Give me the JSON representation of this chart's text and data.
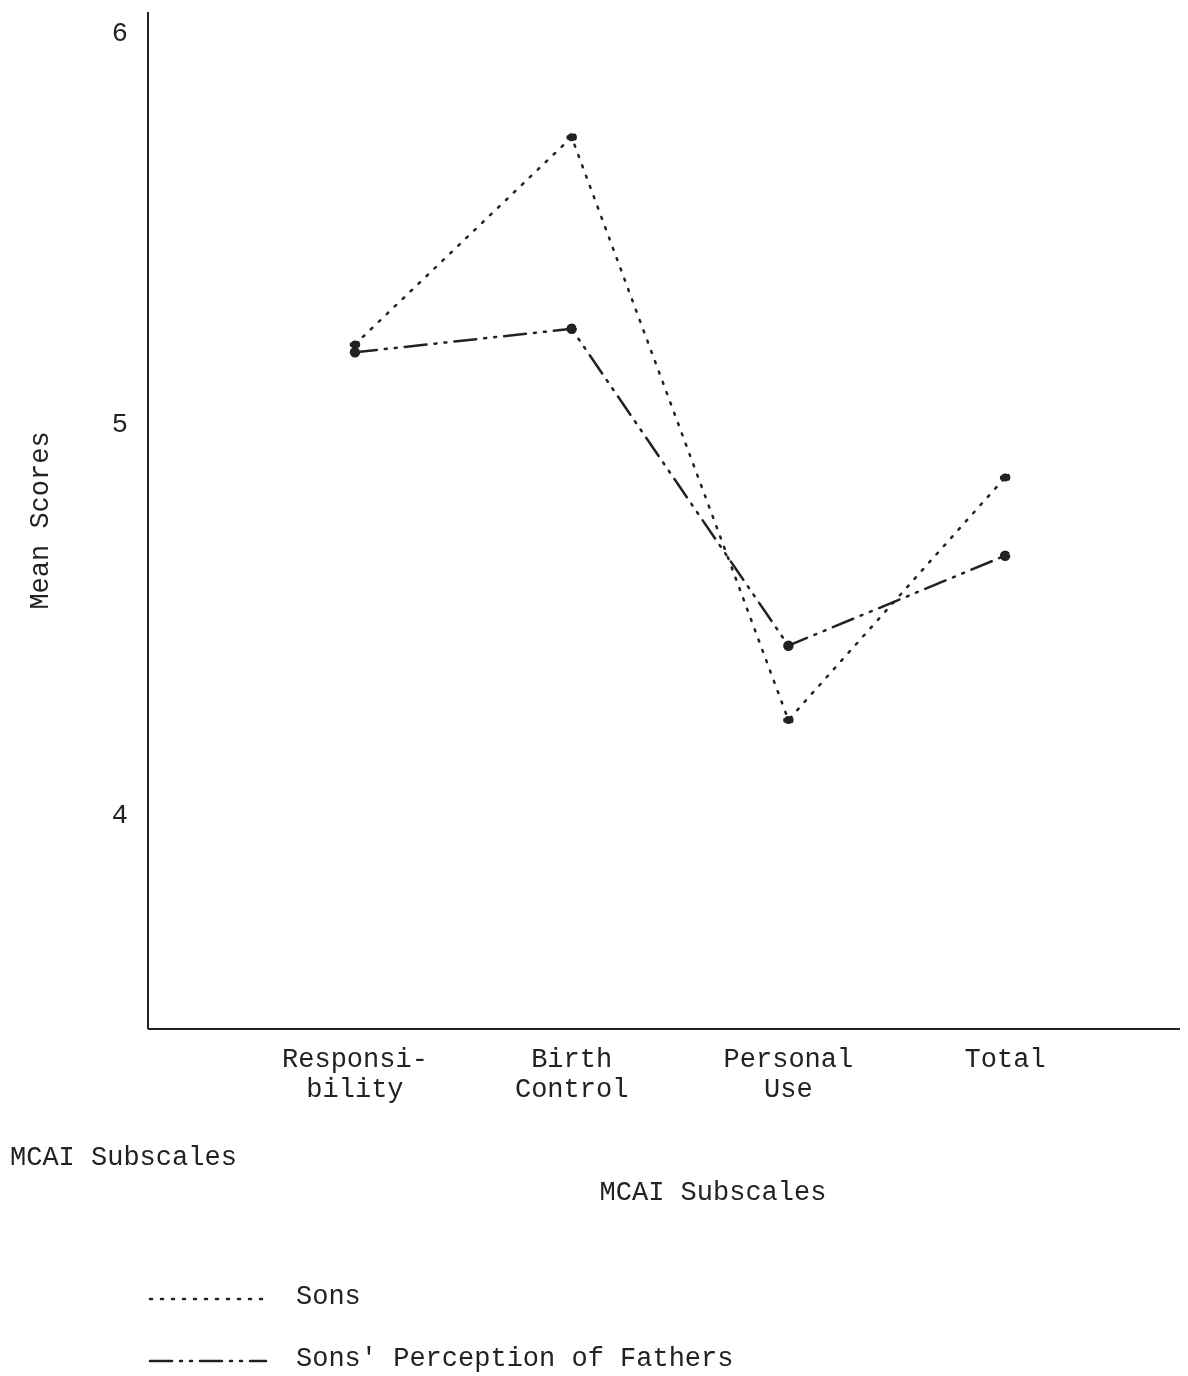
{
  "chart_data": {
    "type": "line",
    "xlabel": "MCAI Subscales",
    "ylabel": "Mean Scores",
    "annotations": [
      "MCAI Subscales"
    ],
    "categories": [
      "Responsi-\nbility",
      "Birth\nControl",
      "Personal\nUse",
      "Total"
    ],
    "series": [
      {
        "name": "Sons",
        "color": "#222222",
        "line_style": "dotted",
        "values": [
          5.2,
          5.73,
          4.24,
          4.86
        ]
      },
      {
        "name": "Sons' Perception of Fathers",
        "color": "#222222",
        "line_style": "dashed",
        "values": [
          5.18,
          5.24,
          4.43,
          4.66
        ]
      }
    ],
    "ylim": [
      3.45,
      6.05
    ],
    "yticks": [
      4,
      5,
      6
    ],
    "marker": "circle",
    "grid": false,
    "legend": "bottom"
  }
}
